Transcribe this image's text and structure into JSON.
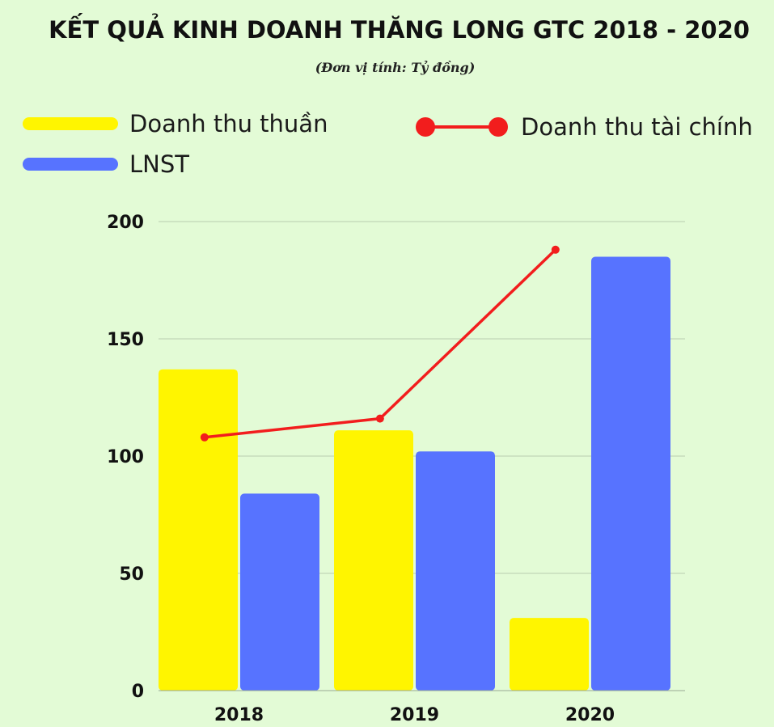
{
  "chart_data": {
    "type": "bar",
    "title": "KẾT QUẢ KINH DOANH THĂNG LONG GTC 2018 - 2020",
    "subtitle": "(Đơn vị tính: Tỷ đồng)",
    "categories": [
      "2018",
      "2019",
      "2020"
    ],
    "series": [
      {
        "name": "Doanh thu thuần",
        "kind": "bar",
        "color": "#fff500",
        "values": [
          137,
          111,
          31
        ]
      },
      {
        "name": "LNST",
        "kind": "bar",
        "color": "#5773ff",
        "values": [
          84,
          102,
          185
        ]
      },
      {
        "name": "Doanh thu tài chính",
        "kind": "line",
        "color": "#f21d1d",
        "values": [
          108,
          116,
          188
        ]
      }
    ],
    "yticks": [
      "0",
      "50",
      "100",
      "150",
      "200"
    ],
    "ylim": [
      0,
      200
    ],
    "grid": true,
    "legend_position": "top"
  }
}
